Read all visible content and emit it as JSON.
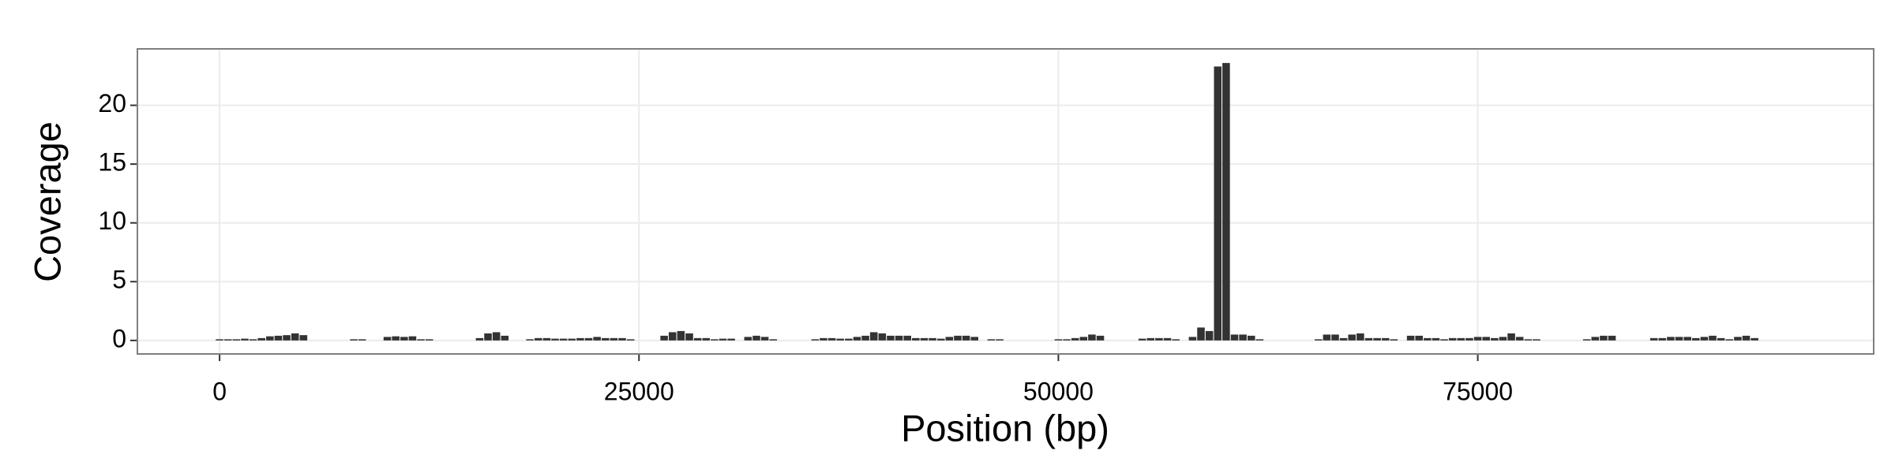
{
  "chart_data": {
    "type": "bar",
    "x_label": "Position (bp)",
    "y_label": "Coverage",
    "x": [
      0,
      500,
      1000,
      1500,
      2000,
      2500,
      3000,
      3500,
      4000,
      4500,
      5000,
      8000,
      8500,
      10000,
      10500,
      11000,
      11500,
      12000,
      12500,
      15500,
      16000,
      16500,
      17000,
      18500,
      19000,
      19500,
      20000,
      20500,
      21000,
      21500,
      22000,
      22500,
      23000,
      23500,
      24000,
      24500,
      26500,
      27000,
      27500,
      28000,
      28500,
      29000,
      29500,
      30000,
      30500,
      31500,
      32000,
      32500,
      33000,
      35500,
      36000,
      36500,
      37000,
      37500,
      38000,
      38500,
      39000,
      39500,
      40000,
      40500,
      41000,
      41500,
      42000,
      42500,
      43000,
      43500,
      44000,
      44500,
      45000,
      46000,
      46500,
      50000,
      50500,
      51000,
      51500,
      52000,
      52500,
      55000,
      55500,
      56000,
      56500,
      57000,
      58000,
      58500,
      59000,
      59500,
      60000,
      60500,
      61000,
      61500,
      62000,
      65500,
      66000,
      66500,
      67000,
      67500,
      68000,
      68500,
      69000,
      69500,
      70000,
      71000,
      71500,
      72000,
      72500,
      73000,
      73500,
      74000,
      74500,
      75000,
      75500,
      76000,
      76500,
      77000,
      77500,
      78000,
      78500,
      81500,
      82000,
      82500,
      83000,
      85500,
      86000,
      86500,
      87000,
      87500,
      88000,
      88500,
      89000,
      89500,
      90000,
      90500,
      91000,
      91500
    ],
    "values": [
      0.1,
      0.1,
      0.1,
      0.15,
      0.1,
      0.2,
      0.35,
      0.4,
      0.45,
      0.6,
      0.45,
      0.1,
      0.1,
      0.3,
      0.35,
      0.3,
      0.35,
      0.1,
      0.1,
      0.2,
      0.6,
      0.7,
      0.4,
      0.1,
      0.2,
      0.2,
      0.15,
      0.15,
      0.15,
      0.2,
      0.2,
      0.3,
      0.2,
      0.2,
      0.2,
      0.1,
      0.4,
      0.7,
      0.8,
      0.6,
      0.2,
      0.2,
      0.1,
      0.15,
      0.15,
      0.3,
      0.4,
      0.3,
      0.1,
      0.1,
      0.2,
      0.2,
      0.15,
      0.15,
      0.3,
      0.4,
      0.7,
      0.6,
      0.4,
      0.4,
      0.4,
      0.2,
      0.2,
      0.2,
      0.15,
      0.3,
      0.4,
      0.4,
      0.3,
      0.1,
      0.1,
      0.1,
      0.1,
      0.2,
      0.3,
      0.5,
      0.4,
      0.15,
      0.2,
      0.2,
      0.2,
      0.1,
      0.3,
      1.1,
      0.8,
      23.3,
      23.6,
      0.5,
      0.5,
      0.4,
      0.1,
      0.1,
      0.5,
      0.5,
      0.2,
      0.5,
      0.6,
      0.2,
      0.2,
      0.2,
      0.1,
      0.4,
      0.4,
      0.2,
      0.2,
      0.1,
      0.2,
      0.2,
      0.2,
      0.3,
      0.3,
      0.2,
      0.3,
      0.6,
      0.3,
      0.1,
      0.1,
      0.1,
      0.3,
      0.4,
      0.4,
      0.2,
      0.2,
      0.3,
      0.3,
      0.3,
      0.2,
      0.3,
      0.4,
      0.2,
      0.1,
      0.3,
      0.4,
      0.2
    ],
    "color": "#333333",
    "xlim": [
      -4900,
      98600
    ],
    "xticks": [
      0,
      25000,
      50000,
      75000
    ],
    "ylim": [
      -1.15,
      24.8
    ],
    "yticks": [
      0,
      5,
      10,
      15,
      20
    ],
    "grid": true
  }
}
